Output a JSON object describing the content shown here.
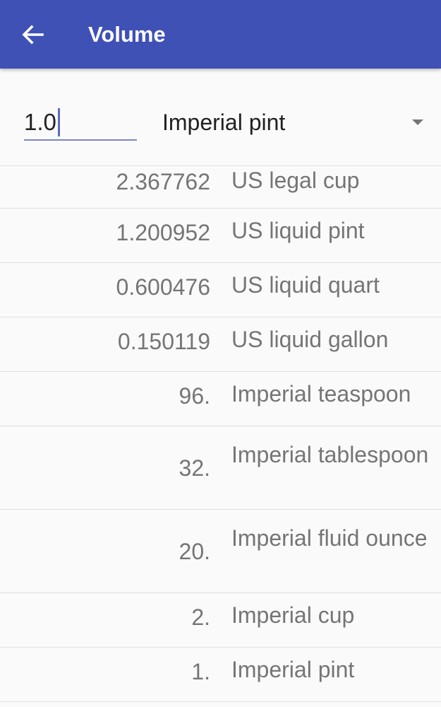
{
  "appbar": {
    "title": "Volume",
    "back_icon": "arrow-back-icon",
    "color": "#3f51b5"
  },
  "converter": {
    "input_value": "1.0",
    "selected_unit": "Imperial pint"
  },
  "results": [
    {
      "value": "2.367762",
      "unit": "US legal cup"
    },
    {
      "value": "1.200952",
      "unit": "US liquid pint"
    },
    {
      "value": "0.600476",
      "unit": "US liquid quart"
    },
    {
      "value": "0.150119",
      "unit": "US liquid gallon"
    },
    {
      "value": "96.",
      "unit": "Imperial teaspoon"
    },
    {
      "value": "32.",
      "unit": "Imperial tablespoon"
    },
    {
      "value": "20.",
      "unit": "Imperial fluid ounce"
    },
    {
      "value": "2.",
      "unit": "Imperial cup"
    },
    {
      "value": "1.",
      "unit": "Imperial pint"
    }
  ]
}
